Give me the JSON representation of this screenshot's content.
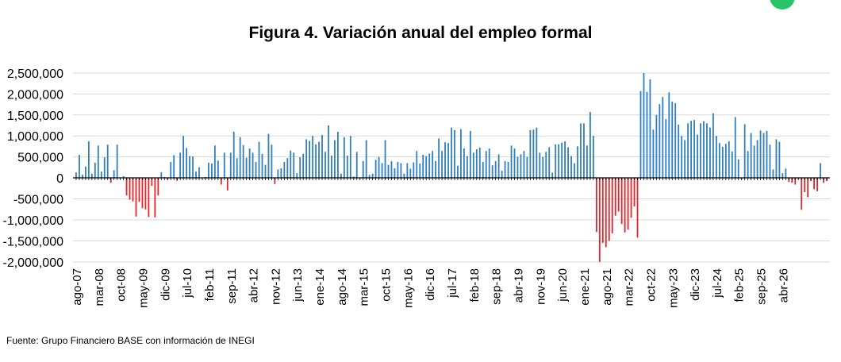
{
  "header": {
    "title": "Figura 4. Variación anual del empleo formal"
  },
  "footer": {
    "source": "Fuente: Grupo Financiero BASE con información de INEGI"
  },
  "colors": {
    "positive": "#2e7fc0",
    "negative": "#e0262b",
    "grid": "#d9d9d9",
    "badge": "#2bc46a"
  },
  "badge_icon": "green-circle-icon",
  "chart_data": {
    "type": "bar",
    "title": "Figura 4. Variación anual del empleo formal",
    "xlabel": "",
    "ylabel": "",
    "ylim": [
      -2000000,
      2500000
    ],
    "grid": true,
    "yticks": [
      2500000,
      2000000,
      1500000,
      1000000,
      500000,
      0,
      -500000,
      -1000000,
      -1500000,
      -2000000
    ],
    "ytick_labels": [
      "2,500,000",
      "2,000,000",
      "1,500,000",
      "1,000,000",
      "500,000",
      "0",
      "-500,000",
      "-1,000,000",
      "-1,500,000",
      "-2,000,000"
    ],
    "start_month": "ago-07",
    "xtick_labels": [
      "ago-07",
      "mar-08",
      "oct-08",
      "may-09",
      "dic-09",
      "jul-10",
      "feb-11",
      "sep-11",
      "abr-12",
      "nov-12",
      "jun-13",
      "ene-14",
      "ago-14",
      "mar-15",
      "oct-15",
      "may-16",
      "dic-16",
      "jul-17",
      "feb-18",
      "sep-18",
      "abr-19",
      "nov-19",
      "jun-20",
      "ene-21",
      "ago-21",
      "mar-22",
      "oct-22",
      "may-23",
      "dic-23",
      "jul-24",
      "feb-25",
      "sep-25",
      "abr-26"
    ],
    "values": [
      130000,
      550000,
      80000,
      270000,
      870000,
      100000,
      360000,
      770000,
      150000,
      490000,
      790000,
      -120000,
      180000,
      790000,
      0,
      40000,
      -420000,
      -520000,
      -560000,
      -920000,
      -570000,
      -720000,
      -750000,
      -930000,
      -190000,
      -940000,
      -420000,
      130000,
      20000,
      -40000,
      380000,
      540000,
      -70000,
      600000,
      1000000,
      710000,
      520000,
      510000,
      150000,
      250000,
      0,
      20000,
      360000,
      340000,
      770000,
      410000,
      -160000,
      600000,
      -300000,
      600000,
      1100000,
      470000,
      970000,
      780000,
      480000,
      700000,
      600000,
      380000,
      860000,
      570000,
      310000,
      1050000,
      790000,
      -150000,
      200000,
      230000,
      380000,
      470000,
      650000,
      600000,
      110000,
      490000,
      570000,
      920000,
      880000,
      1000000,
      800000,
      860000,
      1020000,
      620000,
      1250000,
      530000,
      900000,
      1100000,
      100000,
      970000,
      530000,
      1000000,
      30000,
      620000,
      0,
      400000,
      900000,
      70000,
      100000,
      430000,
      500000,
      350000,
      900000,
      310000,
      400000,
      230000,
      380000,
      350000,
      100000,
      350000,
      220000,
      370000,
      640000,
      340000,
      550000,
      520000,
      580000,
      640000,
      400000,
      940000,
      640000,
      850000,
      830000,
      1200000,
      1140000,
      290000,
      1160000,
      700000,
      520000,
      1120000,
      600000,
      680000,
      720000,
      380000,
      640000,
      700000,
      300000,
      400000,
      560000,
      170000,
      400000,
      380000,
      770000,
      700000,
      500000,
      560000,
      640000,
      500000,
      1140000,
      1150000,
      1200000,
      600000,
      500000,
      620000,
      730000,
      120000,
      800000,
      800000,
      840000,
      870000,
      730000,
      520000,
      350000,
      750000,
      1300000,
      1300000,
      770000,
      1570000,
      1000000,
      -1290000,
      -2000000,
      -1550000,
      -1650000,
      -1500000,
      -1320000,
      -900000,
      -800000,
      -1100000,
      -1300000,
      -1230000,
      -950000,
      -680000,
      -1420000,
      2070000,
      2500000,
      2050000,
      2350000,
      1150000,
      1500000,
      1760000,
      1930000,
      1400000,
      2040000,
      1820000,
      1780000,
      1270000,
      1000000,
      900000,
      1300000,
      1360000,
      1380000,
      1030000,
      1300000,
      1350000,
      1300000,
      1200000,
      1540000,
      1000000,
      830000,
      740000,
      810000,
      870000,
      630000,
      1450000,
      440000,
      -30000,
      1280000,
      640000,
      1070000,
      770000,
      900000,
      1130000,
      1070000,
      1120000,
      790000,
      200000,
      920000,
      860000,
      110000,
      220000,
      -100000,
      -120000,
      -160000,
      -30000,
      -760000,
      -340000,
      -460000,
      -80000,
      -270000,
      -320000,
      350000,
      -120000,
      -80000
    ]
  }
}
